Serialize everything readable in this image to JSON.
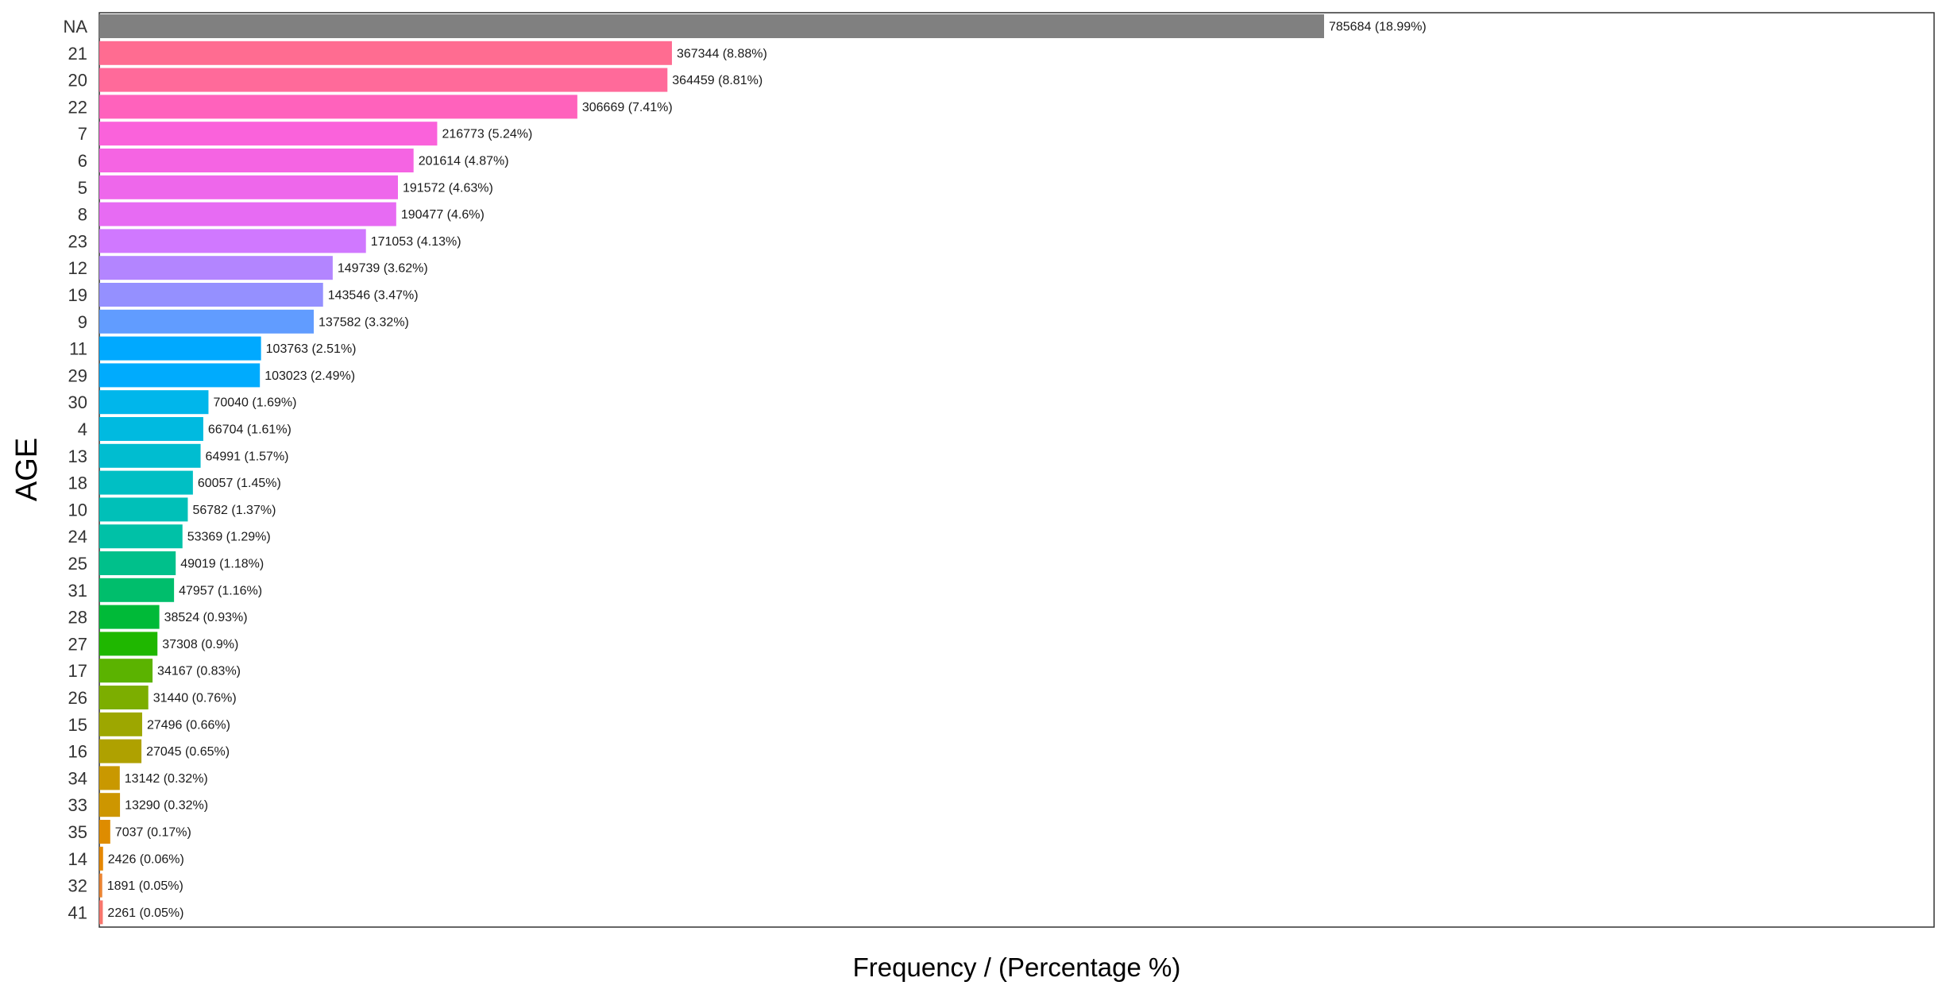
{
  "chart_data": {
    "type": "bar",
    "orientation": "horizontal",
    "xlabel": "Frequency / (Percentage %)",
    "ylabel": "AGE",
    "xlim": [
      0,
      1177000
    ],
    "grid": false,
    "legend": "none",
    "categories": [
      "NA",
      "21",
      "20",
      "22",
      "7",
      "6",
      "5",
      "8",
      "23",
      "12",
      "19",
      "9",
      "11",
      "29",
      "30",
      "4",
      "13",
      "18",
      "10",
      "24",
      "25",
      "31",
      "28",
      "27",
      "17",
      "26",
      "15",
      "16",
      "34",
      "33",
      "35",
      "14",
      "32",
      "41"
    ],
    "values": [
      785684,
      367344,
      364459,
      306669,
      216773,
      201614,
      191572,
      190477,
      171053,
      149739,
      143546,
      137582,
      103763,
      103023,
      70040,
      66704,
      64991,
      60057,
      56782,
      53369,
      49019,
      47957,
      38524,
      37308,
      34167,
      31440,
      27496,
      27045,
      13142,
      13290,
      7037,
      2426,
      1891,
      2261
    ],
    "data_labels": [
      "785684 (18.99%)",
      "367344 (8.88%)",
      "364459 (8.81%)",
      "306669 (7.41%)",
      "216773 (5.24%)",
      "201614 (4.87%)",
      "191572 (4.63%)",
      "190477 (4.6%)",
      "171053 (4.13%)",
      "149739 (3.62%)",
      "143546 (3.47%)",
      "137582 (3.32%)",
      "103763 (2.51%)",
      "103023 (2.49%)",
      "70040 (1.69%)",
      "66704 (1.61%)",
      "64991 (1.57%)",
      "60057 (1.45%)",
      "56782 (1.37%)",
      "53369 (1.29%)",
      "49019 (1.18%)",
      "47957 (1.16%)",
      "38524 (0.93%)",
      "37308 (0.9%)",
      "34167 (0.83%)",
      "31440 (0.76%)",
      "27496 (0.66%)",
      "27045 (0.65%)",
      "13142 (0.32%)",
      "13290 (0.32%)",
      "7037 (0.17%)",
      "2426 (0.06%)",
      "1891 (0.05%)",
      "2261 (0.05%)"
    ],
    "colors": [
      "#808080",
      "#FF6C91",
      "#FF6A9A",
      "#FF62BC",
      "#FA62DB",
      "#F564E3",
      "#EE67EB",
      "#E76BF3",
      "#D078FF",
      "#B385FF",
      "#9590FF",
      "#619CFF",
      "#00A9FF",
      "#00ABFD",
      "#00B6EB",
      "#00BAE0",
      "#00BDD0",
      "#00BFC4",
      "#00C0B8",
      "#00C1A7",
      "#00C08B",
      "#00BE6C",
      "#00BA38",
      "#1FB700",
      "#5BB300",
      "#7CAE00",
      "#9DA700",
      "#AFA100",
      "#C99800",
      "#CD9600",
      "#DE8C00",
      "#E58700",
      "#EA8331",
      "#F8766D"
    ]
  }
}
